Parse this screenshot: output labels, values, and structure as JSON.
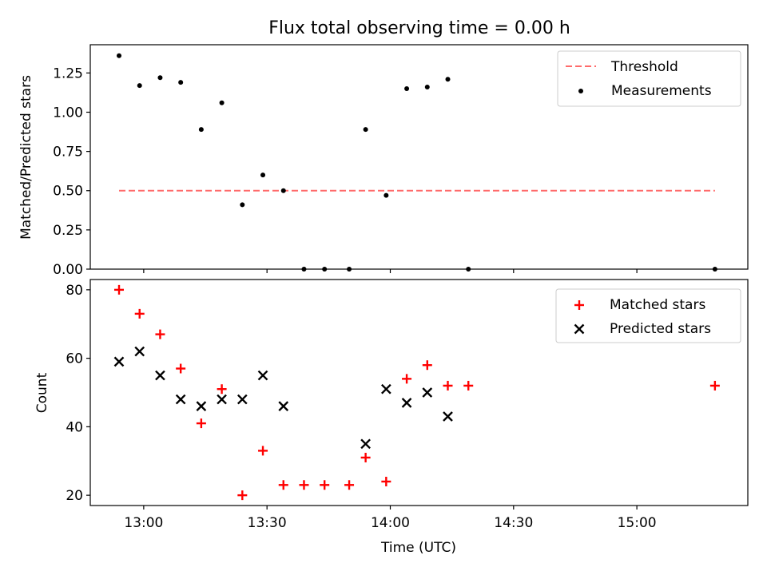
{
  "figure": {
    "title": "Flux total observing time = 0.00 h"
  },
  "chart_data": [
    {
      "type": "scatter",
      "ylabel": "Matched/Predicted stars",
      "xlabel": "",
      "ylim": [
        0,
        1.43
      ],
      "yticks": [
        "0.00",
        "0.25",
        "0.50",
        "0.75",
        "1.00",
        "1.25"
      ],
      "xlim": [
        "12:47",
        "15:27"
      ],
      "xticks": [
        "13:00",
        "13:30",
        "14:00",
        "14:30",
        "15:00"
      ],
      "show_xtick_labels": false,
      "grid": false,
      "legend_position": "top-right",
      "legend": [
        "Threshold",
        "Measurements"
      ],
      "threshold": {
        "name": "Threshold",
        "value": 0.5,
        "x_start": "12:54",
        "x_end": "15:19",
        "color": "#ff6b6b",
        "style": "dashed"
      },
      "series": [
        {
          "name": "Measurements",
          "marker": "dot",
          "color": "#000000",
          "x": [
            "12:54",
            "12:59",
            "13:04",
            "13:09",
            "13:14",
            "13:19",
            "13:24",
            "13:29",
            "13:34",
            "13:39",
            "13:44",
            "13:50",
            "13:54",
            "13:59",
            "14:04",
            "14:09",
            "14:14",
            "14:19",
            "15:19"
          ],
          "y": [
            1.36,
            1.17,
            1.22,
            1.19,
            0.89,
            1.06,
            0.41,
            0.6,
            0.5,
            0.0,
            0.0,
            0.0,
            0.89,
            0.47,
            1.15,
            1.16,
            1.21,
            0.0,
            0.0
          ]
        }
      ]
    },
    {
      "type": "scatter",
      "ylabel": "Count",
      "xlabel": "Time (UTC)",
      "ylim": [
        17,
        83
      ],
      "yticks": [
        "20",
        "40",
        "60",
        "80"
      ],
      "xlim": [
        "12:47",
        "15:27"
      ],
      "xticks": [
        "13:00",
        "13:30",
        "14:00",
        "14:30",
        "15:00"
      ],
      "show_xtick_labels": true,
      "grid": false,
      "legend_position": "top-right",
      "legend": [
        "Matched stars",
        "Predicted stars"
      ],
      "series": [
        {
          "name": "Matched stars",
          "marker": "plus",
          "color": "#ff0000",
          "x": [
            "12:54",
            "12:59",
            "13:04",
            "13:09",
            "13:14",
            "13:19",
            "13:24",
            "13:29",
            "13:34",
            "13:39",
            "13:44",
            "13:50",
            "13:54",
            "13:59",
            "14:04",
            "14:09",
            "14:14",
            "14:19",
            "15:19"
          ],
          "y": [
            80,
            73,
            67,
            57,
            41,
            51,
            20,
            33,
            23,
            23,
            23,
            23,
            31,
            24,
            54,
            58,
            52,
            52,
            52
          ]
        },
        {
          "name": "Predicted stars",
          "marker": "x",
          "color": "#000000",
          "x": [
            "12:54",
            "12:59",
            "13:04",
            "13:09",
            "13:14",
            "13:19",
            "13:24",
            "13:29",
            "13:34",
            "13:54",
            "13:59",
            "14:04",
            "14:09",
            "14:14"
          ],
          "y": [
            59,
            62,
            55,
            48,
            46,
            48,
            48,
            55,
            46,
            35,
            51,
            47,
            50,
            43
          ]
        }
      ]
    }
  ]
}
